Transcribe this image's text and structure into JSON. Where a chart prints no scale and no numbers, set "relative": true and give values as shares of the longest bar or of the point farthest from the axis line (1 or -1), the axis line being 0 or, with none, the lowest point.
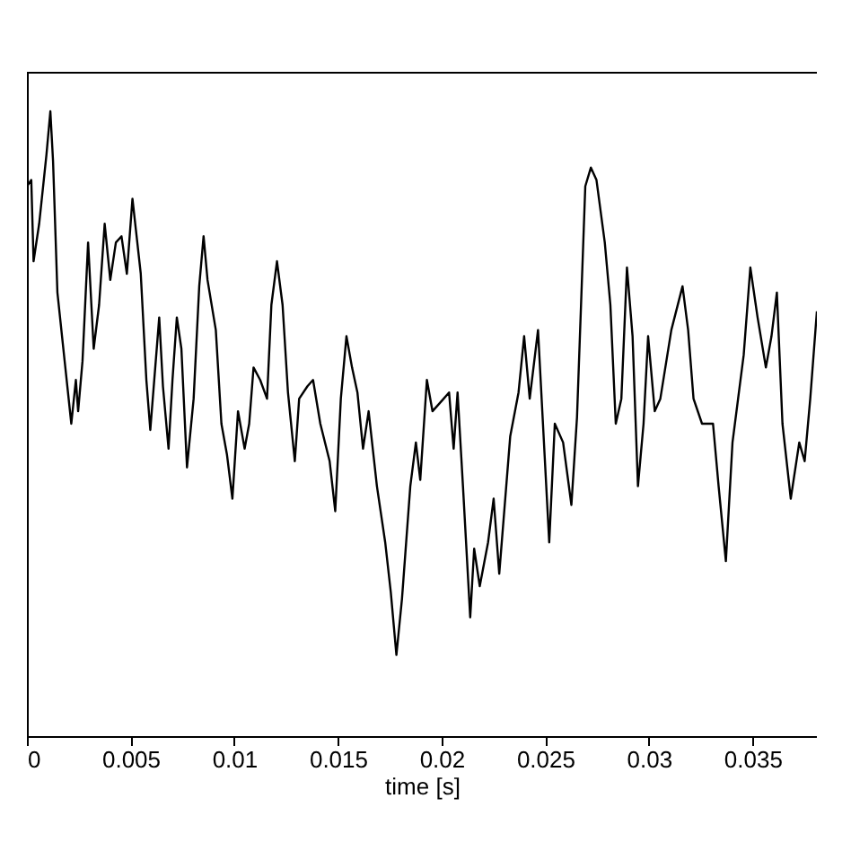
{
  "chart_data": {
    "type": "line",
    "xlabel": "time [s]",
    "relative": true,
    "grid": false,
    "xlim": [
      0,
      0.0381
    ],
    "xticks": [
      0,
      0.005,
      0.01,
      0.015,
      0.02,
      0.025,
      0.03,
      0.035
    ],
    "x": [
      0,
      0.00021,
      0.00032,
      0.00059,
      0.00075,
      0.00094,
      0.00113,
      0.00126,
      0.00147,
      0.00182,
      0.00214,
      0.00236,
      0.00247,
      0.00268,
      0.00295,
      0.00322,
      0.00348,
      0.00375,
      0.00402,
      0.00429,
      0.00456,
      0.00482,
      0.00509,
      0.00549,
      0.00576,
      0.00595,
      0.00638,
      0.00656,
      0.00683,
      0.00702,
      0.00723,
      0.00745,
      0.00772,
      0.00804,
      0.00831,
      0.00852,
      0.00871,
      0.00911,
      0.00938,
      0.00965,
      0.00991,
      0.01018,
      0.0105,
      0.01072,
      0.01093,
      0.01125,
      0.01158,
      0.01179,
      0.01206,
      0.01233,
      0.01259,
      0.01292,
      0.01313,
      0.01353,
      0.0138,
      0.01415,
      0.0146,
      0.01487,
      0.01514,
      0.01541,
      0.01568,
      0.01594,
      0.01621,
      0.01648,
      0.01688,
      0.01728,
      0.01755,
      0.01782,
      0.01809,
      0.01849,
      0.01876,
      0.01897,
      0.01929,
      0.01956,
      0.0201,
      0.02036,
      0.02058,
      0.02077,
      0.02103,
      0.02138,
      0.02157,
      0.02184,
      0.02224,
      0.02251,
      0.02278,
      0.02331,
      0.02371,
      0.02398,
      0.02425,
      0.02465,
      0.02519,
      0.02546,
      0.02586,
      0.02626,
      0.02653,
      0.02693,
      0.0272,
      0.02747,
      0.02787,
      0.02814,
      0.0284,
      0.02867,
      0.02894,
      0.02921,
      0.02947,
      0.02974,
      0.02996,
      0.03028,
      0.03055,
      0.03108,
      0.03162,
      0.03189,
      0.03215,
      0.03256,
      0.03309,
      0.03336,
      0.03371,
      0.03403,
      0.0343,
      0.03457,
      0.03489,
      0.03524,
      0.03564,
      0.03591,
      0.03617,
      0.03644,
      0.03684,
      0.03725,
      0.03751,
      0.03778,
      0.0381
    ],
    "series": [
      {
        "color": "#000000",
        "values": [
          0.88,
          0.89,
          0.76,
          0.82,
          0.87,
          0.93,
          1.0,
          0.92,
          0.71,
          0.6,
          0.5,
          0.57,
          0.52,
          0.6,
          0.79,
          0.62,
          0.69,
          0.82,
          0.73,
          0.79,
          0.8,
          0.74,
          0.86,
          0.74,
          0.57,
          0.49,
          0.67,
          0.56,
          0.46,
          0.57,
          0.67,
          0.62,
          0.43,
          0.54,
          0.72,
          0.8,
          0.73,
          0.65,
          0.5,
          0.45,
          0.38,
          0.52,
          0.46,
          0.5,
          0.59,
          0.57,
          0.54,
          0.69,
          0.76,
          0.69,
          0.55,
          0.44,
          0.54,
          0.56,
          0.57,
          0.5,
          0.44,
          0.36,
          0.54,
          0.64,
          0.59,
          0.55,
          0.46,
          0.52,
          0.4,
          0.31,
          0.23,
          0.13,
          0.22,
          0.4,
          0.47,
          0.41,
          0.57,
          0.52,
          0.54,
          0.55,
          0.46,
          0.55,
          0.4,
          0.19,
          0.3,
          0.24,
          0.31,
          0.38,
          0.26,
          0.48,
          0.55,
          0.64,
          0.54,
          0.65,
          0.31,
          0.5,
          0.47,
          0.37,
          0.51,
          0.88,
          0.91,
          0.89,
          0.79,
          0.69,
          0.5,
          0.54,
          0.75,
          0.64,
          0.4,
          0.5,
          0.64,
          0.52,
          0.54,
          0.65,
          0.72,
          0.65,
          0.54,
          0.5,
          0.5,
          0.4,
          0.28,
          0.47,
          0.54,
          0.61,
          0.75,
          0.67,
          0.59,
          0.64,
          0.71,
          0.5,
          0.38,
          0.47,
          0.44,
          0.54,
          0.68
        ]
      }
    ]
  }
}
